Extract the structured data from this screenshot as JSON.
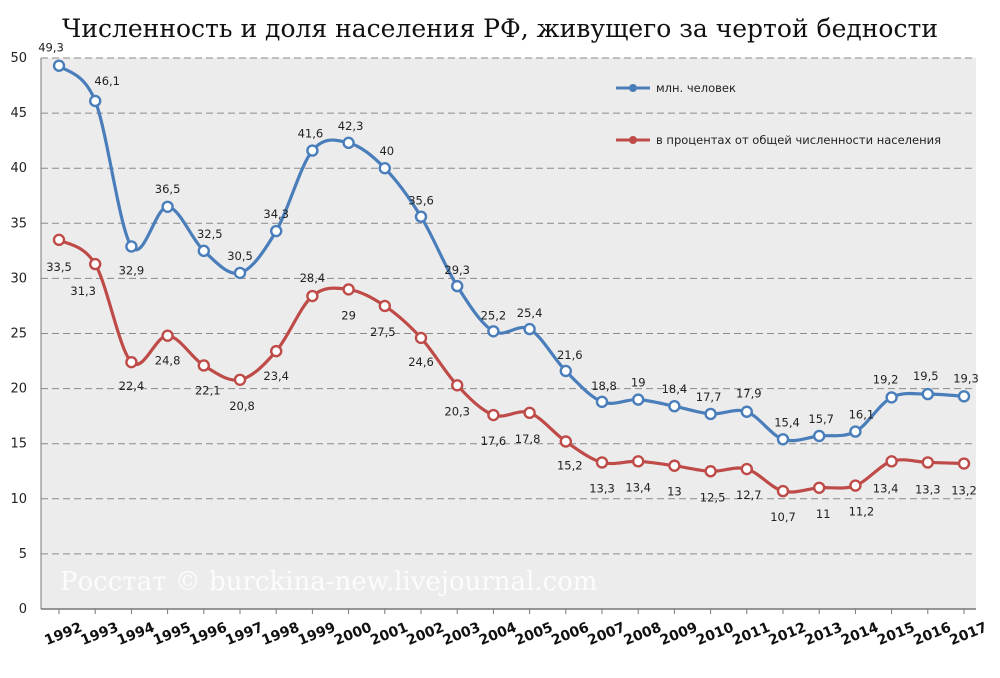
{
  "chart_data": {
    "type": "line",
    "title": "Численность и доля населения РФ, живущего за чертой бедности",
    "xlabel": "",
    "ylabel": "",
    "ylim": [
      0,
      50
    ],
    "yticks": [
      0,
      5,
      10,
      15,
      20,
      25,
      30,
      35,
      40,
      45,
      50
    ],
    "grid": true,
    "legend_position": "top-right",
    "categories": [
      "1992",
      "1993",
      "1994",
      "1995",
      "1996",
      "1997",
      "1998",
      "1999",
      "2000",
      "2001",
      "2002",
      "2003",
      "2004",
      "2005",
      "2006",
      "2007",
      "2008",
      "2009",
      "2010",
      "2011",
      "2012",
      "2013",
      "2014",
      "2015",
      "2016",
      "2017"
    ],
    "series": [
      {
        "name": "млн. человек",
        "color": "#4a7ebb",
        "values": [
          49.3,
          46.1,
          32.9,
          36.5,
          32.5,
          30.5,
          34.3,
          41.6,
          42.3,
          40,
          35.6,
          29.3,
          25.2,
          25.4,
          21.6,
          18.8,
          19,
          18.4,
          17.7,
          17.9,
          15.4,
          15.7,
          16.1,
          19.2,
          19.5,
          19.3
        ],
        "labels": [
          "49,3",
          "46,1",
          "32,9",
          "36,5",
          "32,5",
          "30,5",
          "34,3",
          "41,6",
          "42,3",
          "40",
          "35,6",
          "29,3",
          "25,2",
          "25,4",
          "21,6",
          "18,8",
          "19",
          "18,4",
          "17,7",
          "17,9",
          "15,4",
          "15,7",
          "16,1",
          "19,2",
          "19,5",
          "19,3"
        ]
      },
      {
        "name": "в процентах от общей численности населения",
        "color": "#be4b48",
        "values": [
          33.5,
          31.3,
          22.4,
          24.8,
          22.1,
          20.8,
          23.4,
          28.4,
          29,
          27.5,
          24.6,
          20.3,
          17.6,
          17.8,
          15.2,
          13.3,
          13.4,
          13,
          12.5,
          12.7,
          10.7,
          11,
          11.2,
          13.4,
          13.3,
          13.2
        ],
        "labels": [
          "33,5",
          "31,3",
          "22,4",
          "24,8",
          "22,1",
          "20,8",
          "23,4",
          "28,4",
          "29",
          "27,5",
          "24,6",
          "20,3",
          "17,6",
          "17,8",
          "15,2",
          "13,3",
          "13,4",
          "13",
          "12,5",
          "12,7",
          "10,7",
          "11",
          "11,2",
          "13,4",
          "13,3",
          "13,2"
        ]
      }
    ],
    "watermark": "Росстат © burckina-new.livejournal.com"
  }
}
